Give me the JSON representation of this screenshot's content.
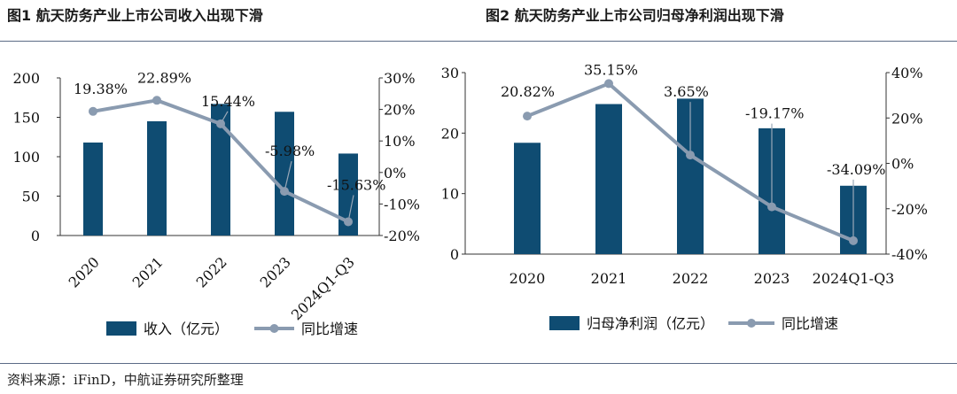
{
  "source_note": "资料来源：iFinD，中航证券研究所整理",
  "chart_data": [
    {
      "type": "bar",
      "title": "图1  航天防务产业上市公司收入出现下滑",
      "categories": [
        "2020",
        "2021",
        "2022",
        "2023",
        "2024Q1-Q3"
      ],
      "series": [
        {
          "name": "收入（亿元）",
          "kind": "bar",
          "axis": "left",
          "color": "#0f4c72",
          "values": [
            118,
            145,
            167,
            157,
            104
          ]
        },
        {
          "name": "同比增速",
          "kind": "line",
          "axis": "right",
          "color": "#8a9bb0",
          "values": [
            19.38,
            22.89,
            15.44,
            -5.98,
            -15.63
          ],
          "labels": [
            "19.38%",
            "22.89%",
            "15.44%",
            "-5.98%",
            "-15.63%"
          ]
        }
      ],
      "left_axis": {
        "min": 0,
        "max": 200,
        "ticks": [
          "0",
          "50",
          "100",
          "150",
          "200"
        ]
      },
      "right_axis": {
        "min": -20,
        "max": 30,
        "ticks": [
          "-20%",
          "-10%",
          "0%",
          "10%",
          "20%",
          "30%"
        ]
      },
      "xlabel_rotation": "rotated",
      "legend": {
        "position": "bottom",
        "items": [
          "收入（亿元）",
          "同比增速"
        ]
      }
    },
    {
      "type": "bar",
      "title": "图2  航天防务产业上市公司归母净利润出现下滑",
      "categories": [
        "2020",
        "2021",
        "2022",
        "2023",
        "2024Q1-Q3"
      ],
      "series": [
        {
          "name": "归母净利润（亿元）",
          "kind": "bar",
          "axis": "left",
          "color": "#0f4c72",
          "values": [
            18.4,
            24.8,
            25.7,
            20.8,
            11.3
          ]
        },
        {
          "name": "同比增速",
          "kind": "line",
          "axis": "right",
          "color": "#8a9bb0",
          "values": [
            20.82,
            35.15,
            3.65,
            -19.17,
            -34.09
          ],
          "labels": [
            "20.82%",
            "35.15%",
            "3.65%",
            "-19.17%",
            "-34.09%"
          ]
        }
      ],
      "left_axis": {
        "min": 0,
        "max": 30,
        "ticks": [
          "0",
          "10",
          "20",
          "30"
        ]
      },
      "right_axis": {
        "min": -40,
        "max": 40,
        "ticks": [
          "-40%",
          "-20%",
          "0%",
          "20%",
          "40%"
        ]
      },
      "xlabel_rotation": "horizontal",
      "legend": {
        "position": "bottom",
        "items": [
          "归母净利润（亿元）",
          "同比增速"
        ]
      }
    }
  ]
}
